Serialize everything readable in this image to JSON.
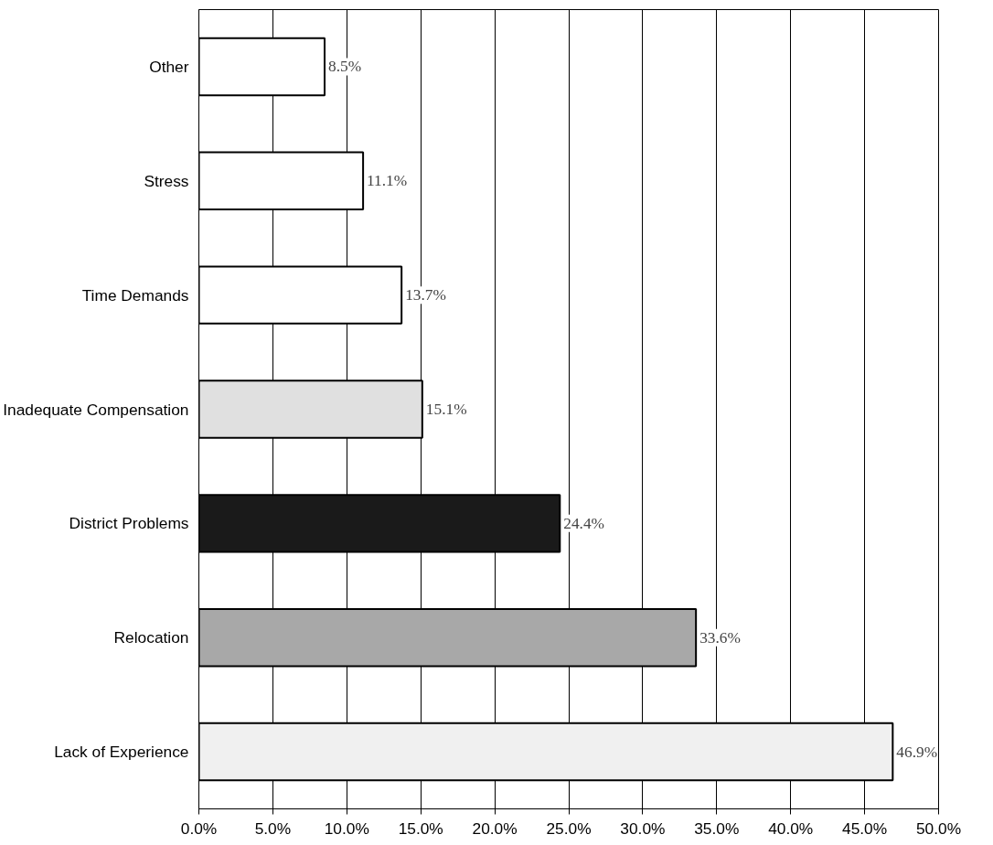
{
  "chart_data": {
    "type": "bar",
    "orientation": "horizontal",
    "categories": [
      "Other",
      "Stress",
      "Time Demands",
      "Inadequate Compensation",
      "District Problems",
      "Relocation",
      "Lack of Experience"
    ],
    "values": [
      8.5,
      11.1,
      13.7,
      15.1,
      24.4,
      33.6,
      46.9
    ],
    "colors": [
      "#ffffff",
      "#ffffff",
      "#ffffff",
      "#e0e0e0",
      "#1a1a1a",
      "#a8a8a8",
      "#f0f0f0"
    ],
    "value_labels": [
      "8.5%",
      "11.1%",
      "13.7%",
      "15.1%",
      "24.4%",
      "33.6%",
      "46.9%"
    ],
    "xlim": [
      0,
      50
    ],
    "xticks": [
      {
        "value": 0,
        "label": "0.0%"
      },
      {
        "value": 5,
        "label": "5.0%"
      },
      {
        "value": 10,
        "label": "10.0%"
      },
      {
        "value": 15,
        "label": "15.0%"
      },
      {
        "value": 20,
        "label": "20.0%"
      },
      {
        "value": 25,
        "label": "25.0%"
      },
      {
        "value": 30,
        "label": "30.0%"
      },
      {
        "value": 35,
        "label": "35.0%"
      },
      {
        "value": 40,
        "label": "40.0%"
      },
      {
        "value": 45,
        "label": "45.0%"
      },
      {
        "value": 50,
        "label": "50.0%"
      }
    ],
    "grid": "x"
  }
}
